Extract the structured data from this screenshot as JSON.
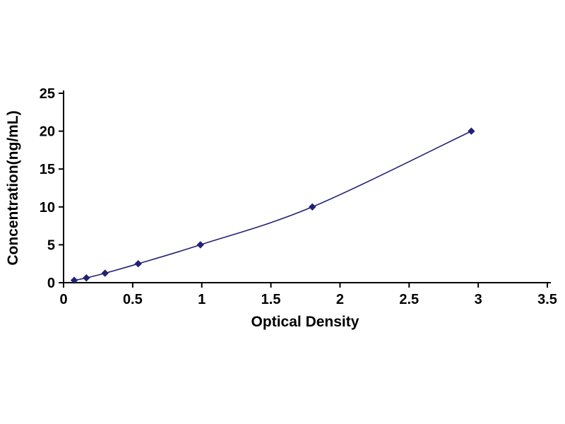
{
  "page": {
    "background": "#ffffff"
  },
  "chart_data": {
    "type": "line",
    "title": "",
    "xlabel": "Optical Density",
    "ylabel": "Concentration(ng/mL)",
    "x": [
      0.077,
      0.165,
      0.3,
      0.54,
      0.99,
      1.8,
      2.95
    ],
    "y": [
      0.31,
      0.63,
      1.25,
      2.5,
      5,
      10,
      20
    ],
    "xlim": [
      0,
      3.5
    ],
    "ylim": [
      0,
      25
    ],
    "xticks": [
      0,
      0.5,
      1,
      1.5,
      2,
      2.5,
      3,
      3.5
    ],
    "xtick_labels": [
      "0",
      "0.5",
      "1",
      "1.5",
      "2",
      "2.5",
      "3",
      "3.5"
    ],
    "yticks": [
      0,
      5,
      10,
      15,
      20,
      25
    ],
    "ytick_labels": [
      "0",
      "5",
      "10",
      "15",
      "20",
      "25"
    ],
    "grid": false,
    "legend": "none",
    "marker": "diamond",
    "marker_size": 9,
    "line_color": "#232176",
    "marker_color": "#232176",
    "axis_color": "#000000",
    "text_color": "#000000"
  }
}
